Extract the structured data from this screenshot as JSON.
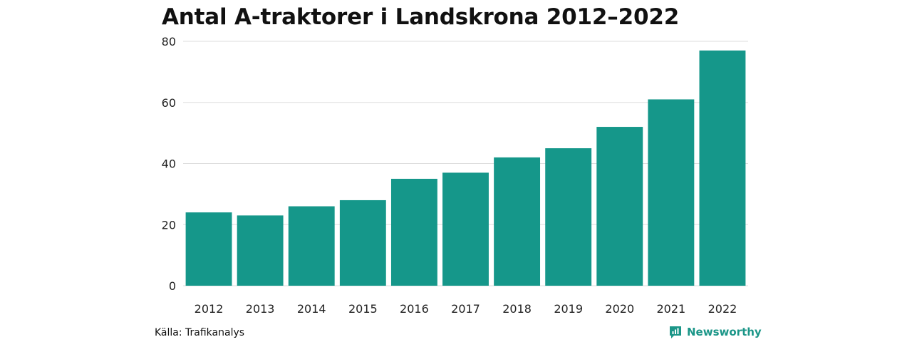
{
  "chart_data": {
    "type": "bar",
    "title": "Antal A-traktorer i Landskrona 2012–2022",
    "xlabel": "",
    "ylabel": "",
    "categories": [
      "2012",
      "2013",
      "2014",
      "2015",
      "2016",
      "2017",
      "2018",
      "2019",
      "2020",
      "2021",
      "2022"
    ],
    "values": [
      24,
      23,
      26,
      28,
      35,
      37,
      42,
      45,
      52,
      61,
      77
    ],
    "ylim": [
      0,
      80
    ],
    "yticks": [
      0,
      20,
      40,
      60,
      80
    ],
    "grid": true,
    "legend": "none",
    "bar_color": "#15978a",
    "grid_color": "#dddddd"
  },
  "footer": {
    "source": "Källa: Trafikanalys",
    "brand": "Newsworthy",
    "brand_color": "#1b9688",
    "brand_icon": "newsworthy-logo-icon"
  }
}
